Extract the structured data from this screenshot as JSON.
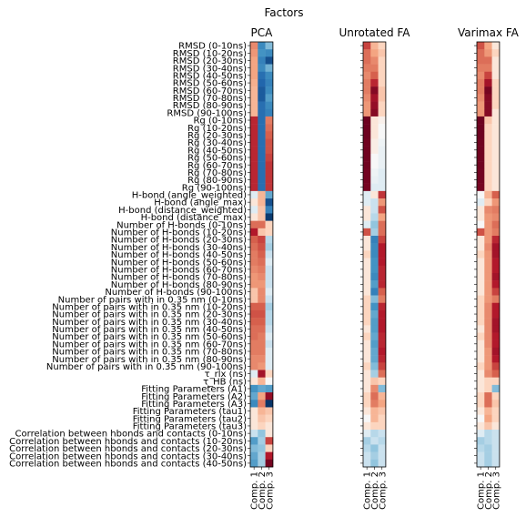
{
  "chart_data": {
    "type": "heatmap",
    "title": "Factors",
    "colormap": "RdBu_r",
    "value_range": [
      -1,
      1
    ],
    "row_labels": [
      "RMSD (0-10ns)",
      "RMSD (10-20ns)",
      "RMSD (20-30ns)",
      "RMSD (30-40ns)",
      "RMSD (40-50ns)",
      "RMSD (50-60ns)",
      "RMSD (60-70ns)",
      "RMSD (70-80ns)",
      "RMSD (80-90ns)",
      "RMSD (90-100ns)",
      "Rg (0-10ns)",
      "Rg (10-20ns)",
      "Rg (20-30ns)",
      "Rg (30-40ns)",
      "Rg (40-50ns)",
      "Rg (50-60ns)",
      "Rg (60-70ns)",
      "Rg (70-80ns)",
      "Rg (80-90ns)",
      "Rg (90-100ns)",
      "H-bond (angle_weighted)",
      "H-bond (angle_max)",
      "H-bond (distance_weighted)",
      "H-bond (distance_max)",
      "Number of H-bonds (0-10ns)",
      "Number of H-bonds (10-20ns)",
      "Number of H-bonds (20-30ns)",
      "Number of H-bonds (30-40ns)",
      "Number of H-bonds (40-50ns)",
      "Number of H-bonds (50-60ns)",
      "Number of H-bonds (60-70ns)",
      "Number of H-bonds (70-80ns)",
      "Number of H-bonds (80-90ns)",
      "Number of H-bonds (90-100ns)",
      "Number of pairs with in 0.35 nm (0-10ns)",
      "Number of pairs with in 0.35 nm (10-20ns)",
      "Number of pairs with in 0.35 nm (20-30ns)",
      "Number of pairs with in 0.35 nm (30-40ns)",
      "Number of pairs with in 0.35 nm (40-50ns)",
      "Number of pairs with in 0.35 nm (50-60ns)",
      "Number of pairs with in 0.35 nm (60-70ns)",
      "Number of pairs with in 0.35 nm (70-80ns)",
      "Number of pairs with in 0.35 nm (80-90ns)",
      "Number of pairs with in 0.35 nm (90-100ns)",
      "τ_rlx (ns)",
      "τ_HB (ns)",
      "Fitting Parameters (A1)",
      "Fitting Parameters (A2)",
      "Fitting Parameters (A3)",
      "Fitting Parameters (tau1)",
      "Fitting Parameters (tau2)",
      "Fitting Parameters (tau3)",
      "Correlation between hbonds and contacts (0-10ns)",
      "Correlation between hbonds and contacts (10-20ns)",
      "Correlation between hbonds and contacts (20-30ns)",
      "Correlation between hbonds and contacts (30-40ns)",
      "Correlation between hbonds and contacts (40-50ns)"
    ],
    "column_labels": [
      "Comp. 1",
      "Comp. 2",
      "Comp. 3"
    ],
    "panels": [
      {
        "title": "PCA",
        "values": [
          [
            0.35,
            -0.55,
            -0.3
          ],
          [
            0.3,
            -0.5,
            -0.55
          ],
          [
            0.25,
            -0.6,
            -0.85
          ],
          [
            0.25,
            -0.55,
            -0.35
          ],
          [
            0.25,
            -0.7,
            -0.55
          ],
          [
            0.22,
            -0.75,
            -0.6
          ],
          [
            0.2,
            -0.8,
            -0.55
          ],
          [
            0.2,
            -0.8,
            -0.45
          ],
          [
            0.2,
            -0.7,
            -0.55
          ],
          [
            0.2,
            -0.7,
            -0.6
          ],
          [
            0.7,
            -0.7,
            0.4
          ],
          [
            0.7,
            -0.7,
            0.45
          ],
          [
            0.7,
            -0.7,
            0.5
          ],
          [
            0.7,
            -0.7,
            0.55
          ],
          [
            0.7,
            -0.7,
            0.55
          ],
          [
            0.7,
            -0.7,
            0.6
          ],
          [
            0.7,
            -0.7,
            0.65
          ],
          [
            0.7,
            -0.7,
            0.65
          ],
          [
            0.7,
            -0.7,
            0.65
          ],
          [
            0.7,
            -0.7,
            0.65
          ],
          [
            -0.05,
            0.2,
            -0.4
          ],
          [
            0.05,
            0.2,
            -0.85
          ],
          [
            -0.05,
            0.15,
            -0.6
          ],
          [
            0.05,
            0.15,
            -0.95
          ],
          [
            0.45,
            0.45,
            0.1
          ],
          [
            0.75,
            0.15,
            0.1
          ],
          [
            0.5,
            0.6,
            -0.15
          ],
          [
            0.45,
            0.55,
            -0.2
          ],
          [
            0.4,
            0.5,
            -0.1
          ],
          [
            0.4,
            0.45,
            -0.05
          ],
          [
            0.35,
            0.4,
            -0.1
          ],
          [
            0.3,
            0.35,
            -0.1
          ],
          [
            0.3,
            0.3,
            -0.1
          ],
          [
            0.15,
            0.35,
            -0.05
          ],
          [
            0.15,
            0.35,
            -0.1
          ],
          [
            0.5,
            0.5,
            -0.2
          ],
          [
            0.55,
            0.55,
            -0.15
          ],
          [
            0.5,
            0.5,
            -0.15
          ],
          [
            0.45,
            0.45,
            -0.1
          ],
          [
            0.45,
            0.4,
            -0.05
          ],
          [
            0.4,
            0.4,
            -0.1
          ],
          [
            0.4,
            0.4,
            -0.05
          ],
          [
            0.35,
            0.35,
            -0.05
          ],
          [
            0.35,
            0.3,
            -0.05
          ],
          [
            -0.05,
            0.8,
            0.1
          ],
          [
            0.05,
            0.2,
            0.0
          ],
          [
            -0.5,
            -0.4,
            -0.45
          ],
          [
            -0.4,
            0.25,
            0.85
          ],
          [
            -0.55,
            0.4,
            -0.98
          ],
          [
            0.05,
            0.2,
            0.15
          ],
          [
            0.05,
            0.15,
            0.1
          ],
          [
            0.05,
            0.1,
            0.05
          ],
          [
            -0.1,
            -0.25,
            0.05
          ],
          [
            -0.45,
            -0.2,
            0.6
          ],
          [
            -0.3,
            -0.25,
            0.1
          ],
          [
            -0.4,
            -0.2,
            0.75
          ],
          [
            -0.45,
            -0.2,
            0.95
          ]
        ]
      },
      {
        "title": "Unrotated FA",
        "values": [
          [
            0.6,
            0.2,
            0.1
          ],
          [
            0.45,
            0.25,
            0.15
          ],
          [
            0.45,
            0.35,
            0.1
          ],
          [
            0.4,
            0.4,
            0.1
          ],
          [
            0.35,
            0.5,
            0.1
          ],
          [
            0.4,
            0.7,
            0.1
          ],
          [
            0.4,
            0.9,
            0.15
          ],
          [
            0.35,
            0.8,
            0.15
          ],
          [
            0.3,
            0.85,
            0.1
          ],
          [
            0.3,
            0.9,
            0.1
          ],
          [
            0.98,
            0.05,
            0.02
          ],
          [
            0.98,
            0.05,
            0.0
          ],
          [
            0.98,
            0.05,
            0.0
          ],
          [
            0.97,
            0.03,
            -0.02
          ],
          [
            0.97,
            0.03,
            -0.03
          ],
          [
            0.97,
            0.0,
            -0.03
          ],
          [
            0.97,
            0.0,
            -0.03
          ],
          [
            0.96,
            -0.02,
            -0.05
          ],
          [
            0.96,
            -0.03,
            -0.05
          ],
          [
            0.95,
            -0.05,
            -0.05
          ],
          [
            -0.05,
            0.05,
            0.65
          ],
          [
            -0.05,
            -0.1,
            0.3
          ],
          [
            0.05,
            -0.1,
            0.55
          ],
          [
            0.05,
            -0.15,
            0.25
          ],
          [
            -0.05,
            -0.25,
            0.45
          ],
          [
            0.55,
            -0.2,
            0.45
          ],
          [
            0.05,
            -0.6,
            0.6
          ],
          [
            0.05,
            -0.55,
            0.75
          ],
          [
            0.1,
            -0.55,
            0.75
          ],
          [
            0.05,
            -0.5,
            0.75
          ],
          [
            0.05,
            -0.5,
            0.7
          ],
          [
            0.05,
            -0.55,
            0.7
          ],
          [
            0.05,
            -0.45,
            0.7
          ],
          [
            0.05,
            -0.6,
            0.5
          ],
          [
            0.1,
            -0.3,
            0.4
          ],
          [
            0.1,
            -0.5,
            0.7
          ],
          [
            0.1,
            -0.4,
            0.75
          ],
          [
            0.1,
            -0.45,
            0.75
          ],
          [
            0.05,
            -0.45,
            0.75
          ],
          [
            0.1,
            -0.4,
            0.7
          ],
          [
            0.05,
            -0.45,
            0.7
          ],
          [
            0.05,
            -0.4,
            0.75
          ],
          [
            0.05,
            -0.4,
            0.7
          ],
          [
            0.1,
            -0.3,
            0.6
          ],
          [
            0.05,
            -0.2,
            0.45
          ],
          [
            0.05,
            0.15,
            0.1
          ],
          [
            0.05,
            0.35,
            -0.3
          ],
          [
            0.1,
            0.45,
            0.2
          ],
          [
            0.1,
            0.4,
            0.25
          ],
          [
            0.05,
            0.2,
            0.15
          ],
          [
            0.0,
            0.2,
            0.1
          ],
          [
            0.05,
            0.1,
            0.1
          ],
          [
            -0.05,
            -0.15,
            -0.1
          ],
          [
            -0.2,
            -0.1,
            -0.15
          ],
          [
            -0.15,
            -0.25,
            -0.1
          ],
          [
            -0.1,
            -0.2,
            -0.1
          ],
          [
            -0.1,
            -0.25,
            -0.1
          ]
        ]
      },
      {
        "title": "Varimax FA",
        "values": [
          [
            0.55,
            0.25,
            0.05
          ],
          [
            0.45,
            0.3,
            0.1
          ],
          [
            0.45,
            0.45,
            0.05
          ],
          [
            0.4,
            0.4,
            0.05
          ],
          [
            0.35,
            0.6,
            0.05
          ],
          [
            0.4,
            0.8,
            0.1
          ],
          [
            0.4,
            0.95,
            0.1
          ],
          [
            0.35,
            0.9,
            0.1
          ],
          [
            0.3,
            0.9,
            0.1
          ],
          [
            0.3,
            0.9,
            0.05
          ],
          [
            0.98,
            0.15,
            0.05
          ],
          [
            0.98,
            0.1,
            0.05
          ],
          [
            0.98,
            0.1,
            0.05
          ],
          [
            0.97,
            0.1,
            0.05
          ],
          [
            0.97,
            0.1,
            0.05
          ],
          [
            0.97,
            0.1,
            0.05
          ],
          [
            0.97,
            0.1,
            0.05
          ],
          [
            0.96,
            0.1,
            0.05
          ],
          [
            0.96,
            0.1,
            0.05
          ],
          [
            0.95,
            0.1,
            0.05
          ],
          [
            0.0,
            0.2,
            0.5
          ],
          [
            -0.05,
            0.1,
            0.3
          ],
          [
            0.05,
            0.35,
            0.4
          ],
          [
            0.05,
            0.3,
            0.35
          ],
          [
            0.0,
            0.3,
            0.45
          ],
          [
            0.55,
            0.3,
            0.4
          ],
          [
            0.05,
            0.3,
            0.7
          ],
          [
            0.05,
            0.35,
            0.8
          ],
          [
            0.1,
            0.3,
            0.8
          ],
          [
            0.05,
            0.3,
            0.75
          ],
          [
            0.05,
            0.3,
            0.75
          ],
          [
            0.05,
            0.3,
            0.8
          ],
          [
            0.05,
            0.3,
            0.75
          ],
          [
            0.05,
            0.3,
            0.6
          ],
          [
            0.1,
            0.3,
            0.4
          ],
          [
            0.1,
            0.35,
            0.75
          ],
          [
            0.1,
            0.35,
            0.75
          ],
          [
            0.1,
            0.35,
            0.8
          ],
          [
            0.05,
            0.35,
            0.8
          ],
          [
            0.1,
            0.35,
            0.75
          ],
          [
            0.05,
            0.35,
            0.75
          ],
          [
            0.05,
            0.3,
            0.8
          ],
          [
            0.05,
            0.3,
            0.75
          ],
          [
            0.1,
            0.3,
            0.6
          ],
          [
            0.05,
            0.35,
            0.5
          ],
          [
            0.05,
            0.1,
            0.1
          ],
          [
            0.05,
            0.1,
            -0.3
          ],
          [
            0.1,
            0.45,
            0.1
          ],
          [
            0.1,
            0.45,
            0.15
          ],
          [
            0.05,
            0.2,
            0.1
          ],
          [
            0.0,
            0.25,
            0.1
          ],
          [
            0.05,
            0.15,
            0.05
          ],
          [
            -0.05,
            -0.15,
            -0.1
          ],
          [
            -0.2,
            -0.15,
            -0.1
          ],
          [
            -0.15,
            -0.2,
            -0.1
          ],
          [
            -0.1,
            -0.2,
            -0.1
          ],
          [
            -0.1,
            -0.2,
            -0.1
          ]
        ]
      }
    ]
  }
}
